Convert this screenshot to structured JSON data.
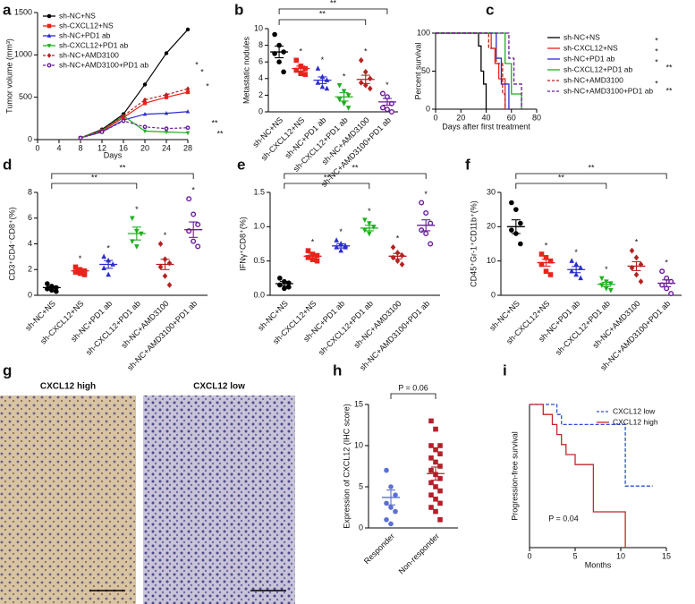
{
  "chart_data": [
    {
      "panel": "a",
      "type": "line",
      "ylabel": "Tumor volume (mm³)",
      "xlabel": "Days",
      "x": [
        8,
        12,
        16,
        20,
        24,
        28
      ],
      "xlim": [
        0,
        28
      ],
      "xticks": [
        0,
        4,
        8,
        12,
        16,
        20,
        24,
        28
      ],
      "ylim": [
        0,
        1500
      ],
      "yticks": [
        0,
        500,
        1000,
        1500
      ],
      "legend": "upper left",
      "series": [
        {
          "name": "sh-NC+NS",
          "color": "#000000",
          "marker": "circle",
          "values": [
            20,
            120,
            300,
            650,
            1020,
            1300
          ]
        },
        {
          "name": "sh-CXCL12+NS",
          "color": "#e8241b",
          "marker": "square",
          "values": [
            20,
            100,
            260,
            430,
            500,
            560
          ]
        },
        {
          "name": "sh-NC+PD1 ab",
          "color": "#2c2ccf",
          "marker": "triangle",
          "values": [
            20,
            90,
            230,
            300,
            310,
            330
          ]
        },
        {
          "name": "sh-CXCL12+PD1 ab",
          "color": "#1fae1f",
          "marker": "triangle-down",
          "values": [
            20,
            110,
            280,
            100,
            90,
            80
          ]
        },
        {
          "name": "sh-NC+AMD3100",
          "color": "#b22222",
          "marker": "diamond",
          "dashed": true,
          "values": [
            20,
            110,
            280,
            470,
            530,
            600
          ]
        },
        {
          "name": "sh-NC+AMD3100+PD1 ab",
          "color": "#6a1b9a",
          "marker": "circle-open",
          "dashed": true,
          "values": [
            20,
            90,
            220,
            150,
            130,
            140
          ]
        }
      ],
      "annotations": [
        "*",
        "*",
        "*",
        "**",
        "**"
      ]
    },
    {
      "panel": "b",
      "type": "dot",
      "ylabel": "Metastatic nodules",
      "ylim": [
        0,
        10
      ],
      "yticks": [
        0,
        2,
        4,
        6,
        8,
        10
      ],
      "categories": [
        "sh-NC+NS",
        "sh-CXCL12+NS",
        "sh-NC+PD1 ab",
        "sh-CXCL12+PD1 ab",
        "sh-NC+AMD3100",
        "sh-NC+AMD3100+PD1 ab"
      ],
      "colors": [
        "#000000",
        "#e8241b",
        "#2c2ccf",
        "#1fae1f",
        "#b22222",
        "#6a1b9a"
      ],
      "markers": [
        "circle",
        "square",
        "triangle",
        "triangle-down",
        "diamond",
        "circle-open"
      ],
      "points": [
        [
          9.3,
          8.0,
          7.2,
          7.0,
          6.0,
          4.8
        ],
        [
          6.2,
          5.5,
          5.2,
          5.0,
          4.6,
          4.5
        ],
        [
          5.2,
          4.2,
          3.8,
          3.5,
          3.0,
          2.8
        ],
        [
          3.2,
          2.5,
          2.0,
          1.5,
          1.0,
          0.5
        ],
        [
          6.2,
          4.8,
          4.0,
          3.5,
          3.2,
          2.8
        ],
        [
          2.2,
          1.8,
          1.0,
          0.5,
          0.3,
          0
        ]
      ],
      "means": [
        7.2,
        5.2,
        3.8,
        1.8,
        3.9,
        1.2
      ],
      "errors": [
        0.7,
        0.3,
        0.4,
        0.5,
        0.5,
        0.4
      ],
      "annotations": [
        "*",
        "*",
        "*",
        "*",
        "*",
        "**",
        "**"
      ]
    },
    {
      "panel": "c",
      "type": "survival",
      "ylabel": "Percent survival",
      "xlabel": "Days after first treatment",
      "xlim": [
        0,
        80
      ],
      "xticks": [
        0,
        20,
        40,
        60,
        80
      ],
      "ylim": [
        0,
        100
      ],
      "yticks": [
        0,
        50,
        100
      ],
      "legend": "right",
      "series": [
        {
          "name": "sh-NC+NS",
          "color": "#000000",
          "x": [
            0,
            34,
            36,
            38,
            40
          ],
          "values": [
            100,
            83,
            50,
            33,
            0
          ]
        },
        {
          "name": "sh-CXCL12+NS",
          "color": "#e8241b",
          "x": [
            0,
            44,
            47,
            50,
            55
          ],
          "values": [
            100,
            80,
            60,
            40,
            0
          ]
        },
        {
          "name": "sh-NC+PD1 ab",
          "color": "#2c2ccf",
          "x": [
            0,
            48,
            52,
            58
          ],
          "values": [
            100,
            67,
            33,
            0
          ]
        },
        {
          "name": "sh-CXCL12+PD1 ab",
          "color": "#1fae1f",
          "x": [
            0,
            55,
            60,
            68
          ],
          "values": [
            100,
            60,
            20,
            0
          ]
        },
        {
          "name": "sh-NC+AMD3100",
          "color": "#b22222",
          "dashed": true,
          "x": [
            0,
            42,
            48,
            53,
            55
          ],
          "values": [
            100,
            80,
            60,
            20,
            0
          ]
        },
        {
          "name": "sh-NC+AMD3100+PD1 ab",
          "color": "#6a1b9a",
          "dashed": true,
          "x": [
            0,
            58,
            62,
            68
          ],
          "values": [
            100,
            67,
            33,
            0
          ]
        }
      ],
      "annotations": [
        "*",
        "*",
        "*",
        "**",
        "*",
        "**"
      ]
    },
    {
      "panel": "d",
      "type": "dot",
      "ylabel": "CD3⁺CD4⁻CD8⁺(%)",
      "ylim": [
        0,
        8
      ],
      "yticks": [
        0,
        2,
        4,
        6,
        8
      ],
      "categories": [
        "sh-NC+NS",
        "sh-CXCL12+NS",
        "sh-NC+PD1 ab",
        "sh-CXCL12+PD1 ab",
        "sh-NC+AMD3100",
        "sh-NC+AMD3100+PD1 ab"
      ],
      "colors": [
        "#000000",
        "#e8241b",
        "#2c2ccf",
        "#1fae1f",
        "#b22222",
        "#6a1b9a"
      ],
      "markers": [
        "circle",
        "square",
        "triangle",
        "triangle-down",
        "diamond",
        "circle-open"
      ],
      "points": [
        [
          0.9,
          0.7,
          0.6,
          0.5,
          0.4,
          0.3
        ],
        [
          2.2,
          2.0,
          1.9,
          1.8,
          1.7,
          1.6
        ],
        [
          3.0,
          2.7,
          2.4,
          2.1,
          1.6
        ],
        [
          6.0,
          5.0,
          4.8,
          4.2,
          3.8
        ],
        [
          4.0,
          2.8,
          2.5,
          2.2,
          1.5,
          0.8
        ],
        [
          7.5,
          6.3,
          5.5,
          5.0,
          4.2,
          3.8
        ]
      ],
      "means": [
        0.6,
        1.9,
        2.4,
        4.8,
        2.4,
        5.1
      ],
      "errors": [
        0.1,
        0.1,
        0.3,
        0.5,
        0.4,
        0.6
      ],
      "annotations": [
        "*",
        "*",
        "*",
        "*",
        "*",
        "**",
        "**"
      ]
    },
    {
      "panel": "e",
      "type": "dot",
      "ylabel": "IFNγ⁺CD8⁺(%)",
      "ylim": [
        0,
        1.5
      ],
      "yticks": [
        {
          "value": 0,
          "label": "0.0"
        },
        0.5,
        {
          "value": 1,
          "label": "1.0"
        },
        1.5
      ],
      "categories": [
        "sh-NC+NS",
        "sh-CXCL12+NS",
        "sh-NC+PD1 ab",
        "sh-CXCL12+PD1 ab",
        "sh-NC+AMD3100",
        "sh-NC+AMD3100+PD1 ab"
      ],
      "colors": [
        "#000000",
        "#e8241b",
        "#2c2ccf",
        "#1fae1f",
        "#b22222",
        "#6a1b9a"
      ],
      "markers": [
        "circle",
        "square",
        "triangle",
        "triangle-down",
        "diamond",
        "circle-open"
      ],
      "points": [
        [
          0.25,
          0.2,
          0.18,
          0.15,
          0.1,
          0.12
        ],
        [
          0.65,
          0.6,
          0.58,
          0.55,
          0.52,
          0.5
        ],
        [
          0.8,
          0.75,
          0.72,
          0.7,
          0.65,
          0.7
        ],
        [
          1.1,
          1.05,
          1.0,
          0.95,
          0.9
        ],
        [
          0.7,
          0.62,
          0.58,
          0.55,
          0.5,
          0.45
        ],
        [
          1.35,
          1.2,
          1.05,
          0.95,
          0.9,
          0.75
        ]
      ],
      "means": [
        0.17,
        0.57,
        0.72,
        0.98,
        0.57,
        1.02
      ],
      "errors": [
        0.03,
        0.03,
        0.03,
        0.04,
        0.04,
        0.08
      ],
      "annotations": [
        "*",
        "*",
        "*",
        "*",
        "*",
        "**",
        "**"
      ]
    },
    {
      "panel": "f",
      "type": "dot",
      "ylabel": "CD45⁺Gr-1⁺CD11b⁺(%)",
      "ylim": [
        0,
        30
      ],
      "yticks": [
        0,
        10,
        20,
        30
      ],
      "categories": [
        "sh-NC+NS",
        "sh-CXCL12+NS",
        "sh-NC+PD1 ab",
        "sh-CXCL12+PD1 ab",
        "sh-NC+AMD3100",
        "sh-NC+AMD3100+PD1 ab"
      ],
      "colors": [
        "#000000",
        "#e8241b",
        "#2c2ccf",
        "#1fae1f",
        "#b22222",
        "#6a1b9a"
      ],
      "markers": [
        "circle",
        "square",
        "triangle",
        "triangle-down",
        "diamond",
        "circle-open"
      ],
      "points": [
        [
          27,
          25,
          21,
          19,
          18,
          15
        ],
        [
          12,
          11,
          10,
          9,
          7,
          6
        ],
        [
          10,
          9,
          8,
          7,
          6,
          5
        ],
        [
          5,
          4,
          3.5,
          3,
          2,
          1.5
        ],
        [
          13,
          11,
          9,
          8,
          6,
          4
        ],
        [
          7,
          5,
          4,
          3,
          2,
          0.5
        ]
      ],
      "means": [
        20,
        9.5,
        7.5,
        3.2,
        8.5,
        3.5
      ],
      "errors": [
        2,
        1,
        0.9,
        0.6,
        1.3,
        1
      ],
      "annotations": [
        "*",
        "*",
        "*",
        "*",
        "*",
        "**",
        "**"
      ]
    },
    {
      "panel": "g",
      "type": "image",
      "labels": [
        "CXCL12 high",
        "CXCL12 low"
      ]
    },
    {
      "panel": "h",
      "type": "dot",
      "ylabel": "Expression of CXCL12 (IHC score)",
      "ylim": [
        0,
        15
      ],
      "yticks": [
        0,
        5,
        10,
        15
      ],
      "categories": [
        "Responder",
        "Non-responder"
      ],
      "colors": [
        "#5b6fd6",
        "#b3202a"
      ],
      "markers": [
        "circle",
        "square"
      ],
      "points": [
        [
          7,
          5,
          4,
          3,
          2.5,
          2,
          1,
          0.5
        ],
        [
          13,
          12,
          10,
          10,
          9.5,
          9,
          8.5,
          8,
          7.5,
          7,
          6.5,
          6,
          5.5,
          5,
          4.5,
          4,
          3.5,
          3,
          2.5,
          2,
          1
        ]
      ],
      "means": [
        3.7,
        6.6
      ],
      "errors": [
        0.9,
        0.8
      ],
      "annotations": [
        "P = 0.06"
      ]
    },
    {
      "panel": "i",
      "type": "survival",
      "ylabel": "Progression-free survival",
      "xlabel": "Months",
      "xlim": [
        0,
        15
      ],
      "xticks": [
        0,
        5,
        10,
        15
      ],
      "ylim": [
        0,
        1
      ],
      "legend": "upper right",
      "series": [
        {
          "name": "CXCL12 low",
          "color": "#2c4fd6",
          "dashed": true,
          "x": [
            0,
            3,
            3.5,
            10.5,
            13.5
          ],
          "values": [
            1,
            0.93,
            0.86,
            0.43,
            0.43
          ]
        },
        {
          "name": "CXCL12 high",
          "color": "#c0282d",
          "x": [
            0,
            1.5,
            2.5,
            3,
            3.5,
            4,
            5,
            7,
            10.5
          ],
          "values": [
            1,
            0.93,
            0.86,
            0.79,
            0.72,
            0.65,
            0.58,
            0.25,
            0
          ]
        }
      ],
      "annotations": [
        "P = 0.04"
      ]
    }
  ]
}
